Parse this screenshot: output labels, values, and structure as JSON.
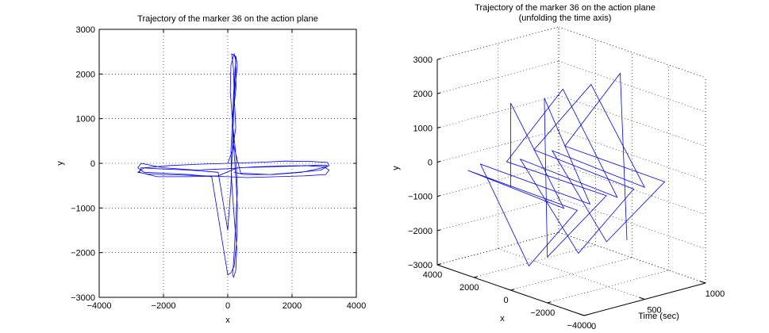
{
  "chart_data": [
    {
      "type": "line",
      "title": "Trajectory of the marker 36 on the action plane",
      "xlabel": "x",
      "ylabel": "y",
      "xlim": [
        -4000,
        4000
      ],
      "ylim": [
        -3000,
        3000
      ],
      "xticks": [
        -4000,
        -2000,
        0,
        2000,
        4000
      ],
      "yticks": [
        -3000,
        -2000,
        -1000,
        0,
        1000,
        2000,
        3000
      ],
      "grid": true,
      "series_color": "#0000ff",
      "description_of_data": "cross-shaped trajectory",
      "series": [
        {
          "x": [
            0,
            150,
            250,
            200,
            180,
            120,
            240,
            260,
            150,
            100,
            120,
            200,
            280,
            250,
            180,
            150,
            200,
            250,
            300,
            250,
            150,
            80,
            100,
            200,
            250,
            200,
            150,
            180,
            250,
            300,
            280,
            200,
            100,
            0,
            -500,
            -1200,
            -2000,
            -2600,
            -2800,
            -2700,
            -2000,
            -1000,
            0,
            800,
            1600,
            2400,
            3000,
            3150,
            3050,
            2400,
            1500,
            600,
            0,
            -700,
            -1600,
            -2500,
            -2800,
            -2600,
            -1800,
            -900,
            0,
            900,
            1800,
            2600,
            3100,
            3150,
            2900,
            2200,
            1300,
            400,
            150,
            200,
            300,
            250,
            200,
            150,
            100,
            0,
            -300,
            -1200,
            -2200,
            -2700,
            -2750,
            -2200,
            -1200,
            -300,
            300,
            1200,
            2200,
            2900,
            3100,
            2950,
            2300,
            1400,
            500,
            200
          ],
          "y": [
            0,
            300,
            800,
            1500,
            2100,
            2450,
            2400,
            1700,
            1000,
            300,
            -400,
            -1200,
            -1900,
            -2400,
            -2550,
            -2500,
            -2000,
            -1300,
            -600,
            200,
            900,
            1600,
            2200,
            2450,
            2300,
            1800,
            1100,
            400,
            -300,
            -1000,
            -1700,
            -2300,
            -2450,
            -2500,
            -300,
            -250,
            -220,
            -200,
            -100,
            0,
            -100,
            -150,
            -120,
            -80,
            -60,
            -50,
            -80,
            -150,
            -250,
            -280,
            -300,
            -320,
            -300,
            -280,
            -260,
            -240,
            -200,
            -100,
            -50,
            -20,
            0,
            20,
            50,
            40,
            20,
            -50,
            -150,
            -200,
            -250,
            -220,
            500,
            1500,
            2200,
            2400,
            1500,
            500,
            -500,
            -1500,
            -200,
            -150,
            -120,
            -100,
            -200,
            -300,
            -300,
            -280,
            -100,
            -80,
            -60,
            -40,
            -50,
            -100,
            -200,
            -250,
            -250,
            -200
          ]
        }
      ]
    },
    {
      "type": "line",
      "title": "Trajectory of the marker 36 on the action plane",
      "subtitle": "(unfolding the time axis)",
      "xlabel": "x",
      "ylabel": "y",
      "zlabel": "Time (sec)",
      "xlim": [
        -4000,
        4000
      ],
      "ylim": [
        -3000,
        3000
      ],
      "zlim": [
        0,
        1000
      ],
      "xticks": [
        -4000,
        -2000,
        0,
        2000,
        4000
      ],
      "xtick_labels": [
        "−4000",
        "−2000",
        "0",
        "2000",
        "4000"
      ],
      "yticks": [
        -3000,
        -2000,
        -1000,
        0,
        1000,
        2000,
        3000
      ],
      "ytick_labels": [
        "−3000",
        "−2000",
        "−1000",
        "0",
        "1000",
        "2000",
        "3000"
      ],
      "zticks": [
        0,
        500,
        1000
      ],
      "grid": true,
      "series_color": "#0000ff",
      "series": [
        {
          "t": [
            0,
            30,
            60,
            100,
            140,
            180,
            220,
            260,
            300,
            340,
            380,
            420,
            460,
            500,
            540,
            580,
            620,
            660,
            700,
            740,
            780,
            820,
            860,
            900,
            940,
            980
          ],
          "x": [
            0,
            200,
            -2500,
            3000,
            -2700,
            200,
            3100,
            -2600,
            150,
            250,
            -2700,
            3000,
            200,
            -2500,
            3050,
            150,
            -2600,
            3100,
            250,
            -2400,
            2900,
            200,
            -2700,
            3000,
            250,
            150
          ],
          "y": [
            0,
            2400,
            -200,
            -150,
            -300,
            -2500,
            -100,
            -250,
            2300,
            -2400,
            -100,
            -200,
            2400,
            -300,
            -250,
            -2500,
            -150,
            -100,
            2300,
            -250,
            -200,
            -2400,
            -150,
            -200,
            2400,
            -2500
          ]
        }
      ]
    }
  ]
}
